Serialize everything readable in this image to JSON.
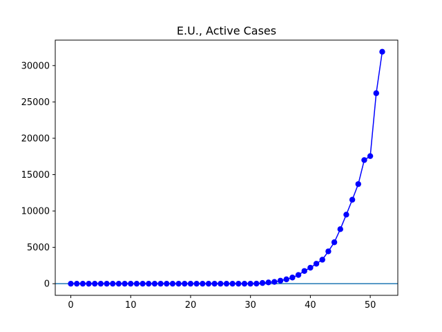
{
  "chart_data": {
    "type": "line",
    "title": "E.U., Active Cases",
    "xlabel": "",
    "ylabel": "",
    "xlim": [
      -2.6,
      54.6
    ],
    "ylim": [
      -1600,
      33500
    ],
    "x_ticks": [
      0,
      10,
      20,
      30,
      40,
      50
    ],
    "y_ticks": [
      0,
      5000,
      10000,
      15000,
      20000,
      25000,
      30000
    ],
    "grid": false,
    "legend": "none",
    "colors": {
      "series": "#0000ff",
      "baseline": "#1f77b4",
      "axes": "#000000"
    },
    "baseline_y": 0,
    "series": [
      {
        "marker": "circle",
        "x": [
          0,
          1,
          2,
          3,
          4,
          5,
          6,
          7,
          8,
          9,
          10,
          11,
          12,
          13,
          14,
          15,
          16,
          17,
          18,
          19,
          20,
          21,
          22,
          23,
          24,
          25,
          26,
          27,
          28,
          29,
          30,
          31,
          32,
          33,
          34,
          35,
          36,
          37,
          38,
          39,
          40,
          41,
          42,
          43,
          44,
          45,
          46,
          47,
          48,
          49,
          50,
          51,
          52
        ],
        "values": [
          0,
          0,
          0,
          0,
          0,
          0,
          0,
          0,
          0,
          0,
          0,
          0,
          0,
          0,
          0,
          0,
          0,
          0,
          0,
          0,
          0,
          0,
          0,
          0,
          0,
          0,
          0,
          0,
          0,
          0,
          0,
          10,
          100,
          180,
          250,
          420,
          600,
          850,
          1200,
          1750,
          2200,
          2750,
          3300,
          4450,
          5700,
          7500,
          9500,
          11550,
          13700,
          17000,
          17550,
          26200,
          31900
        ]
      }
    ]
  }
}
